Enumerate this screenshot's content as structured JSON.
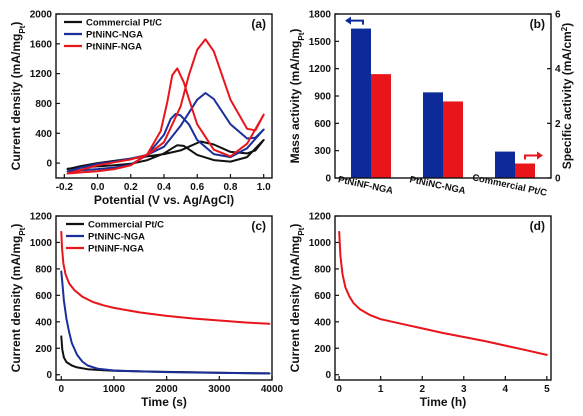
{
  "chart_data": [
    {
      "panel": "(a)",
      "type": "line",
      "xlabel": "Potential (V vs. Ag/AgCl)",
      "ylabel": "Current density (mA/mg",
      "ylabel_sub": "Pt",
      "ylabel_end": ")",
      "xlim": [
        -0.25,
        1.05
      ],
      "ylim": [
        -200,
        2000
      ],
      "xticks": [
        -0.2,
        0.0,
        0.2,
        0.4,
        0.6,
        0.8,
        1.0
      ],
      "xtick_labels": [
        "-0.2",
        "0.0",
        "0.2",
        "0.4",
        "0.6",
        "0.8",
        "1.0"
      ],
      "yticks": [
        0,
        400,
        800,
        1200,
        1600,
        2000
      ],
      "ytick_labels": [
        "0",
        "400",
        "800",
        "1200",
        "1600",
        "2000"
      ],
      "legend_position": "top-left",
      "series": [
        {
          "name": "Commercial Pt/C",
          "color": "#111111",
          "x": [
            -0.18,
            -0.1,
            0.0,
            0.1,
            0.2,
            0.3,
            0.4,
            0.5,
            0.55,
            0.62,
            0.7,
            0.8,
            0.9,
            0.95,
            1.0,
            1.0,
            0.9,
            0.8,
            0.7,
            0.6,
            0.52,
            0.48,
            0.45,
            0.4,
            0.3,
            0.2,
            0.1,
            0.0,
            -0.1,
            -0.18,
            -0.18
          ],
          "y": [
            -80,
            -40,
            0,
            30,
            60,
            90,
            120,
            170,
            220,
            290,
            250,
            150,
            130,
            170,
            310,
            310,
            80,
            20,
            40,
            110,
            230,
            240,
            200,
            130,
            40,
            -10,
            -30,
            -45,
            -55,
            -75,
            -80
          ]
        },
        {
          "name": "PtNiNC-NGA",
          "color": "#1a2f9a",
          "x": [
            -0.18,
            -0.1,
            0.0,
            0.1,
            0.2,
            0.3,
            0.4,
            0.5,
            0.6,
            0.65,
            0.7,
            0.8,
            0.9,
            0.95,
            1.0,
            1.0,
            0.9,
            0.8,
            0.7,
            0.6,
            0.55,
            0.5,
            0.47,
            0.44,
            0.4,
            0.3,
            0.2,
            0.1,
            0.0,
            -0.1,
            -0.18,
            -0.18
          ],
          "y": [
            -110,
            -60,
            -10,
            20,
            60,
            110,
            220,
            500,
            850,
            940,
            860,
            520,
            330,
            340,
            450,
            450,
            200,
            80,
            120,
            310,
            520,
            640,
            660,
            590,
            380,
            110,
            -20,
            -60,
            -80,
            -95,
            -110,
            -110
          ]
        },
        {
          "name": "PtNiNF-NGA",
          "color": "#e8151b",
          "x": [
            -0.18,
            -0.1,
            0.0,
            0.1,
            0.2,
            0.3,
            0.4,
            0.5,
            0.55,
            0.6,
            0.65,
            0.7,
            0.8,
            0.9,
            0.95,
            1.0,
            1.0,
            0.9,
            0.8,
            0.7,
            0.6,
            0.55,
            0.52,
            0.48,
            0.45,
            0.42,
            0.38,
            0.3,
            0.2,
            0.1,
            0.0,
            -0.1,
            -0.18,
            -0.18
          ],
          "y": [
            -140,
            -90,
            -30,
            10,
            50,
            110,
            280,
            760,
            1180,
            1520,
            1660,
            1500,
            850,
            460,
            440,
            650,
            650,
            260,
            90,
            180,
            520,
            860,
            1080,
            1270,
            1180,
            820,
            430,
            120,
            -30,
            -80,
            -110,
            -125,
            -140,
            -140
          ]
        }
      ]
    },
    {
      "panel": "(b)",
      "type": "bar",
      "ylabel": "Mass activity (mA/mg",
      "ylabel_sub": "Pt",
      "ylabel_end": ")",
      "y2label": "Specific activity (mA/cm",
      "y2label_sup": "2",
      "y2label_end": ")",
      "categories": [
        "PtNiNF-NGA",
        "PtNiNC-NGA",
        "Commercial Pt/C"
      ],
      "ylim": [
        0,
        1800
      ],
      "yticks": [
        0,
        300,
        600,
        900,
        1200,
        1500,
        1800
      ],
      "ytick_labels": [
        "0",
        "300",
        "600",
        "900",
        "1200",
        "1500",
        "1800"
      ],
      "y2lim": [
        0,
        6
      ],
      "y2ticks": [
        0,
        2,
        4,
        6
      ],
      "y2tick_labels": [
        "0",
        "2",
        "4",
        "6"
      ],
      "series": [
        {
          "axis": "left",
          "color": "#0d2a9a",
          "values": [
            1640,
            940,
            290
          ]
        },
        {
          "axis": "right",
          "color": "#e8151b",
          "values": [
            3.8,
            2.8,
            0.53
          ]
        }
      ]
    },
    {
      "panel": "(c)",
      "type": "line",
      "xlabel": "Time (s)",
      "ylabel": "Current density (mA/mg",
      "ylabel_sub": "Pt",
      "ylabel_end": ")",
      "xlim": [
        -100,
        4000
      ],
      "ylim": [
        -40,
        1200
      ],
      "xticks": [
        0,
        1000,
        2000,
        3000,
        4000
      ],
      "xtick_labels": [
        "0",
        "1000",
        "2000",
        "3000",
        "4000"
      ],
      "yticks": [
        0,
        200,
        400,
        600,
        800,
        1000,
        1200
      ],
      "ytick_labels": [
        "0",
        "200",
        "400",
        "600",
        "800",
        "1000",
        "1200"
      ],
      "legend_position": "top-center",
      "series": [
        {
          "name": "Commercial Pt/C",
          "color": "#111111",
          "x": [
            0,
            20,
            50,
            100,
            200,
            300,
            500,
            800,
            1000,
            1500,
            2000,
            2500,
            3000,
            3500,
            3950
          ],
          "y": [
            290,
            190,
            130,
            95,
            70,
            55,
            42,
            33,
            30,
            25,
            21,
            18,
            15,
            12,
            10
          ]
        },
        {
          "name": "PtNiNC-NGA",
          "color": "#1a2f9a",
          "x": [
            0,
            20,
            50,
            100,
            150,
            200,
            300,
            400,
            500,
            700,
            1000,
            1500,
            2000,
            3000,
            3950
          ],
          "y": [
            780,
            700,
            560,
            420,
            320,
            240,
            150,
            100,
            70,
            45,
            32,
            25,
            20,
            14,
            10
          ]
        },
        {
          "name": "PtNiNF-NGA",
          "color": "#e8151b",
          "x": [
            0,
            15,
            40,
            80,
            150,
            250,
            400,
            600,
            800,
            1000,
            1500,
            2000,
            2500,
            3000,
            3500,
            3950
          ],
          "y": [
            1080,
            950,
            840,
            760,
            690,
            640,
            590,
            550,
            525,
            505,
            470,
            445,
            425,
            410,
            395,
            385
          ]
        }
      ]
    },
    {
      "panel": "(d)",
      "type": "line",
      "xlabel": "Time (h)",
      "ylabel": "Current density (mA/mg",
      "ylabel_sub": "Pt",
      "ylabel_end": ")",
      "xlim": [
        -0.1,
        5.1
      ],
      "ylim": [
        -40,
        1200
      ],
      "xticks": [
        0,
        1,
        2,
        3,
        4,
        5
      ],
      "xtick_labels": [
        "0",
        "1",
        "2",
        "3",
        "4",
        "5"
      ],
      "yticks": [
        0,
        200,
        400,
        600,
        800,
        1000,
        1200
      ],
      "ytick_labels": [
        "0",
        "200",
        "400",
        "600",
        "800",
        "1000",
        "1200"
      ],
      "series": [
        {
          "color": "#e8151b",
          "x": [
            0.0,
            0.03,
            0.08,
            0.15,
            0.25,
            0.35,
            0.5,
            0.75,
            1.0,
            1.5,
            2.0,
            2.5,
            3.0,
            3.5,
            4.0,
            4.5,
            5.0
          ],
          "y": [
            1080,
            900,
            760,
            660,
            590,
            540,
            495,
            450,
            420,
            385,
            350,
            315,
            285,
            255,
            220,
            185,
            150
          ]
        }
      ]
    }
  ]
}
